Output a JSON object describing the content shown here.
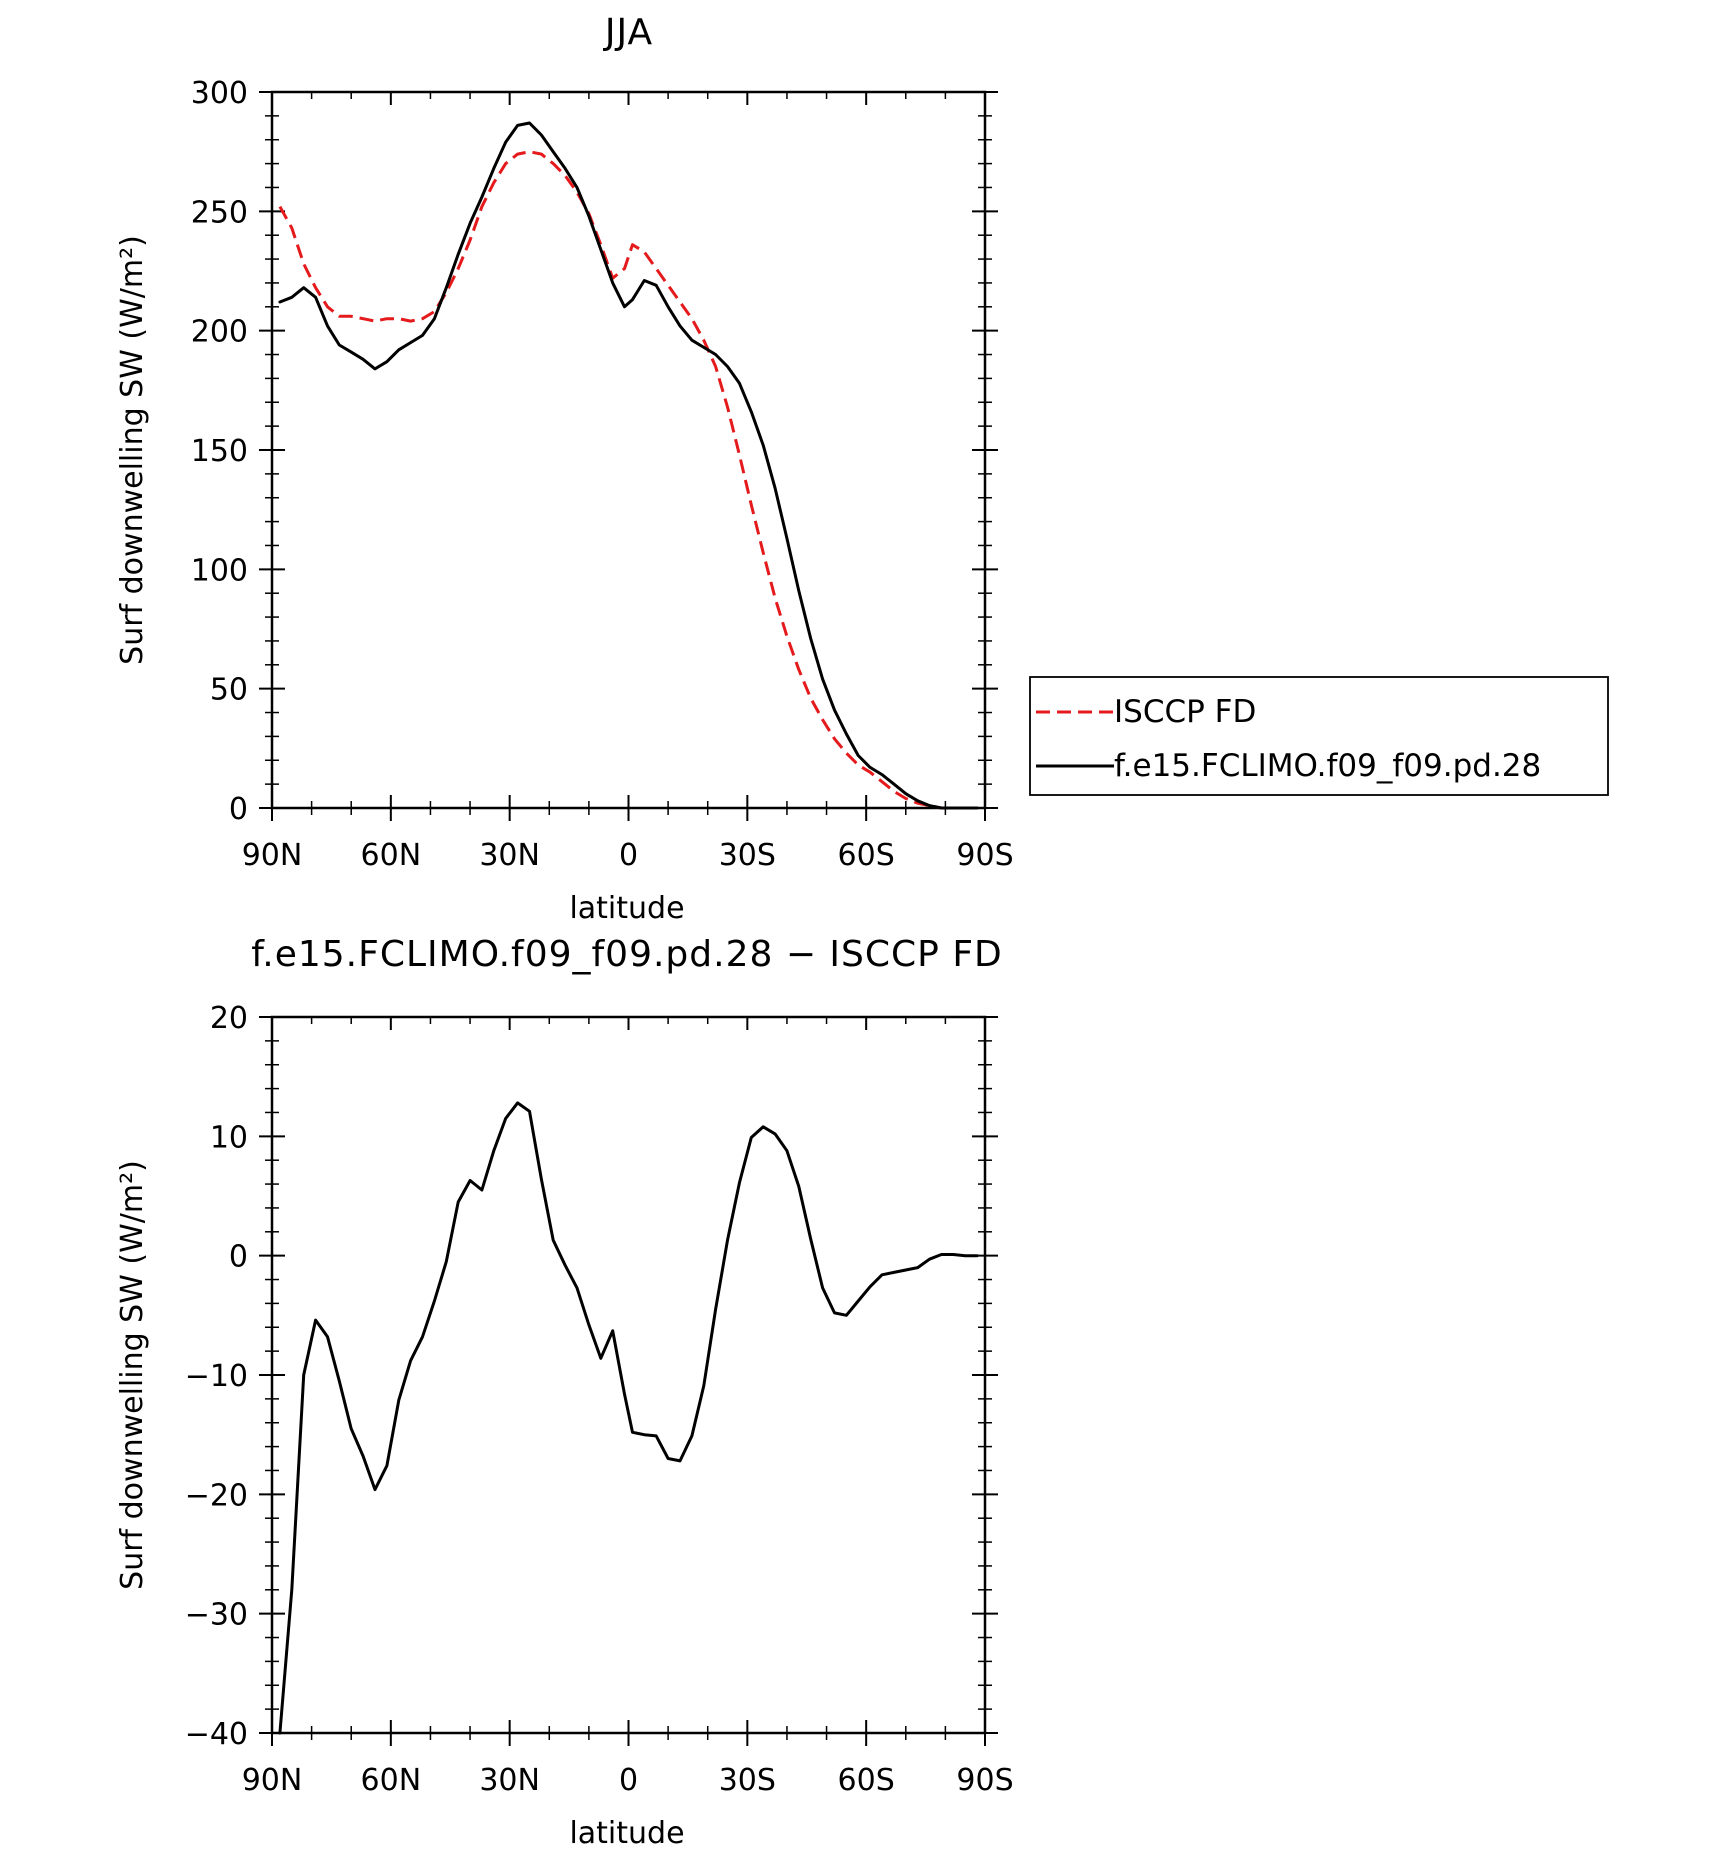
{
  "chart_data": [
    {
      "type": "line",
      "title": "JJA",
      "xlabel": "latitude",
      "ylabel": "Surf downwelling SW (W/m²)",
      "xlim": [
        90,
        -90
      ],
      "ylim": [
        0,
        300
      ],
      "xticks": [
        90,
        60,
        30,
        0,
        -30,
        -60,
        -90
      ],
      "xtick_labels": [
        "90N",
        "60N",
        "30N",
        "0",
        "30S",
        "60S",
        "90S"
      ],
      "yticks": [
        0,
        50,
        100,
        150,
        200,
        250,
        300
      ],
      "ytick_labels": [
        "0",
        "50",
        "100",
        "150",
        "200",
        "250",
        "300"
      ],
      "grid": false,
      "legend_position": "right",
      "series": [
        {
          "name": "ISCCP FD",
          "color": "#e41a1c",
          "style": "dashed",
          "x": [
            88,
            85,
            82,
            79,
            76,
            73,
            70,
            67,
            64,
            61,
            58,
            55,
            52,
            49,
            46,
            43,
            40,
            37,
            34,
            31,
            28,
            25,
            22,
            19,
            16,
            13,
            10,
            7,
            4,
            1,
            -1,
            -4,
            -7,
            -10,
            -13,
            -16,
            -19,
            -22,
            -25,
            -28,
            -31,
            -34,
            -37,
            -40,
            -43,
            -46,
            -49,
            -52,
            -55,
            -58,
            -61,
            -64,
            -67,
            -70,
            -73,
            -76,
            -79,
            -82,
            -85,
            -88
          ],
          "y": [
            252,
            243,
            228,
            218,
            210,
            206,
            206,
            205,
            204,
            205,
            205,
            204,
            205,
            208,
            216,
            226,
            238,
            252,
            262,
            270,
            274,
            275,
            274,
            270,
            265,
            258,
            249,
            236,
            222,
            226,
            236,
            233,
            226,
            219,
            212,
            205,
            196,
            185,
            168,
            148,
            127,
            107,
            88,
            72,
            58,
            46,
            37,
            29,
            23,
            18,
            15,
            11,
            7,
            4,
            2,
            1,
            0,
            0,
            0,
            0
          ]
        },
        {
          "name": "f.e15.FCLIMO.f09_f09.pd.28",
          "color": "#000000",
          "style": "solid",
          "x": [
            88,
            85,
            82,
            79,
            76,
            73,
            70,
            67,
            64,
            61,
            58,
            55,
            52,
            49,
            46,
            43,
            40,
            37,
            34,
            31,
            28,
            25,
            22,
            19,
            16,
            13,
            10,
            7,
            4,
            1,
            -1,
            -4,
            -7,
            -10,
            -13,
            -16,
            -19,
            -22,
            -25,
            -28,
            -31,
            -34,
            -37,
            -40,
            -43,
            -46,
            -49,
            -52,
            -55,
            -58,
            -61,
            -64,
            -67,
            -70,
            -73,
            -76,
            -79,
            -82,
            -85,
            -88
          ],
          "y": [
            212,
            214,
            218,
            214,
            202,
            194,
            191,
            188,
            184,
            187,
            192,
            195,
            198,
            205,
            218,
            232,
            245,
            256,
            268,
            279,
            286,
            287,
            282,
            275,
            268,
            260,
            248,
            234,
            220,
            210,
            213,
            221,
            219,
            210,
            202,
            196,
            193,
            190,
            185,
            178,
            166,
            152,
            134,
            113,
            91,
            71,
            54,
            41,
            31,
            22,
            17,
            14,
            10,
            6,
            3,
            1,
            0,
            0,
            0,
            0
          ]
        }
      ]
    },
    {
      "type": "line",
      "title": "f.e15.FCLIMO.f09_f09.pd.28 − ISCCP FD",
      "xlabel": "latitude",
      "ylabel": "Surf downwelling SW (W/m²)",
      "xlim": [
        90,
        -90
      ],
      "ylim": [
        -40,
        20
      ],
      "xticks": [
        90,
        60,
        30,
        0,
        -30,
        -60,
        -90
      ],
      "xtick_labels": [
        "90N",
        "60N",
        "30N",
        "0",
        "30S",
        "60S",
        "90S"
      ],
      "yticks": [
        -40,
        -30,
        -20,
        -10,
        0,
        10,
        20
      ],
      "ytick_labels": [
        "−40",
        "−30",
        "−20",
        "−10",
        "0",
        "10",
        "20"
      ],
      "grid": false,
      "series": [
        {
          "color": "#000000",
          "style": "solid",
          "x": [
            88,
            85,
            82,
            79,
            76,
            73,
            70,
            67,
            64,
            61,
            58,
            55,
            52,
            49,
            46,
            43,
            40,
            37,
            34,
            31,
            28,
            25,
            22,
            19,
            16,
            13,
            10,
            7,
            4,
            1,
            -1,
            -4,
            -7,
            -10,
            -13,
            -16,
            -19,
            -22,
            -25,
            -28,
            -31,
            -34,
            -37,
            -40,
            -43,
            -46,
            -49,
            -52,
            -55,
            -58,
            -61,
            -64,
            -67,
            -70,
            -73,
            -76,
            -79,
            -82,
            -85,
            -88
          ],
          "y": [
            -40,
            -28,
            -10,
            -5.4,
            -6.8,
            -10.5,
            -14.5,
            -16.8,
            -19.6,
            -17.6,
            -12.1,
            -8.8,
            -6.8,
            -3.8,
            -0.5,
            4.5,
            6.3,
            5.5,
            8.8,
            11.5,
            12.8,
            12.1,
            6.4,
            1.3,
            -0.8,
            -2.7,
            -5.8,
            -8.6,
            -6.3,
            -11.6,
            -14.8,
            -15.0,
            -15.1,
            -17.0,
            -17.2,
            -15.1,
            -10.9,
            -4.5,
            1.3,
            6.1,
            9.9,
            10.8,
            10.2,
            8.8,
            5.8,
            1.4,
            -2.7,
            -4.8,
            -5.0,
            -3.8,
            -2.6,
            -1.6,
            -1.4,
            -1.2,
            -1.0,
            -0.3,
            0.1,
            0.1,
            0.0,
            0.0
          ]
        }
      ]
    }
  ]
}
